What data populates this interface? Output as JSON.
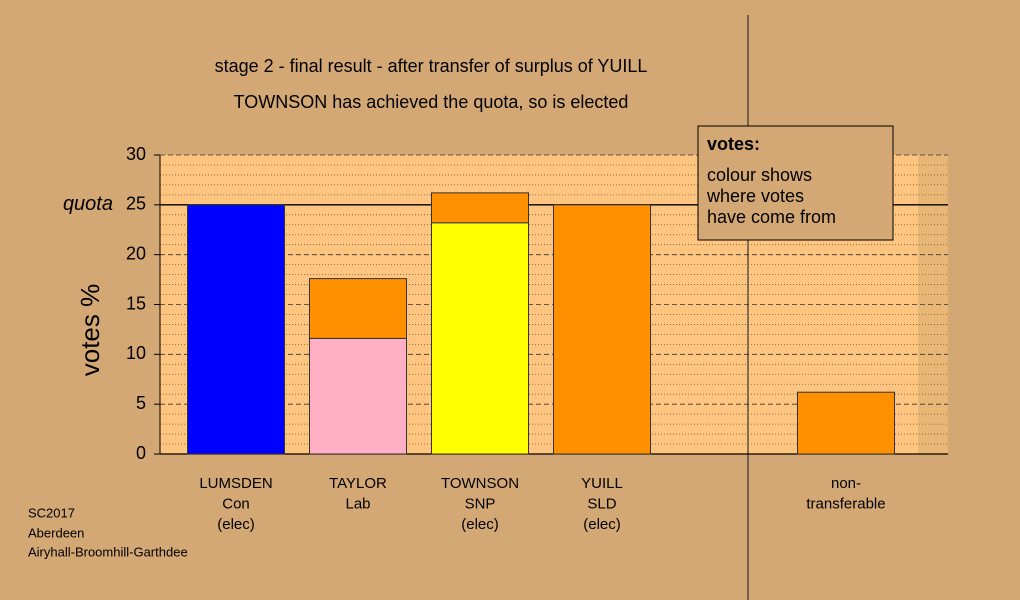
{
  "chart_data": {
    "type": "stacked-bar",
    "title": "stage 2 - final result - after transfer of surplus of YUILL",
    "subtitle": "TOWNSON has achieved the quota, so is elected",
    "y_label": "votes %",
    "categories": [
      [
        "LUMSDEN",
        "Con",
        "(elec)"
      ],
      [
        "TAYLOR",
        "Lab"
      ],
      [
        "TOWNSON",
        "SNP",
        "(elec)"
      ],
      [
        "YUILL",
        "SLD",
        "(elec)"
      ],
      null,
      [
        "non-",
        "transferable"
      ]
    ],
    "series": [
      {
        "colors": [
          "#0000ff",
          "#ffb0c4",
          "#ffff00",
          "#ff9000",
          null,
          null
        ],
        "values": [
          25,
          11.6,
          23.2,
          25,
          null,
          null
        ]
      },
      {
        "color": "#ff9000",
        "values": [
          null,
          6.0,
          3.0,
          null,
          null,
          6.2
        ]
      }
    ],
    "ylim": [
      0,
      30
    ],
    "yticks": [
      0,
      5,
      10,
      15,
      20,
      25,
      30
    ],
    "minor_yticks": [
      1,
      2,
      3,
      4,
      6,
      7,
      8,
      9,
      11,
      12,
      13,
      14,
      16,
      17,
      18,
      19,
      21,
      22,
      23,
      24,
      26,
      27,
      28,
      29
    ],
    "quota": {
      "value": 25,
      "label": "quota"
    },
    "note": {
      "heading": "votes:",
      "lines": [
        "colour shows",
        "where votes",
        "have come from"
      ]
    },
    "footer": [
      "SC2017",
      "Aberdeen",
      "Airyhall-Broomhill-Garthdee"
    ]
  }
}
